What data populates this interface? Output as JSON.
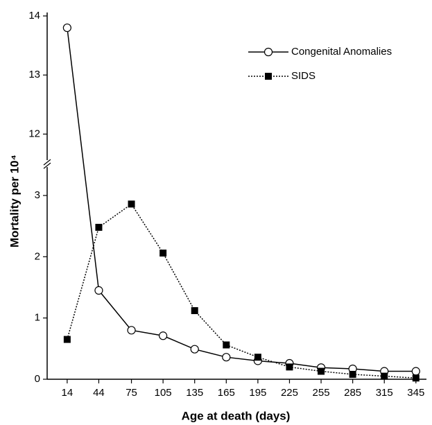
{
  "chart_data": {
    "type": "line",
    "x_label": "Age at death (days)",
    "y_label": "Mortality per 10⁴",
    "x": [
      14,
      44,
      75,
      105,
      135,
      165,
      195,
      225,
      255,
      285,
      315,
      345
    ],
    "xlim": [
      -5,
      355
    ],
    "xticks": [
      14,
      44,
      75,
      105,
      135,
      165,
      195,
      225,
      255,
      285,
      315,
      345
    ],
    "ylim": [
      0,
      14
    ],
    "y_break": [
      3.52,
      11.5
    ],
    "yticks": [
      0,
      1,
      2,
      3,
      12,
      13,
      14
    ],
    "grid": false,
    "legend": "upper right",
    "series": [
      {
        "name": "Congenital Anomalies",
        "color": "#000000",
        "line_style": "solid",
        "marker": "open-circle",
        "values": [
          13.8,
          1.45,
          0.8,
          0.71,
          0.49,
          0.36,
          0.3,
          0.26,
          0.19,
          0.17,
          0.13,
          0.13
        ]
      },
      {
        "name": "SIDS",
        "color": "#000000",
        "line_style": "dotted",
        "marker": "filled-square",
        "values": [
          0.65,
          2.48,
          2.86,
          2.06,
          1.12,
          0.56,
          0.36,
          0.2,
          0.13,
          0.08,
          0.05,
          0.02
        ]
      }
    ]
  }
}
